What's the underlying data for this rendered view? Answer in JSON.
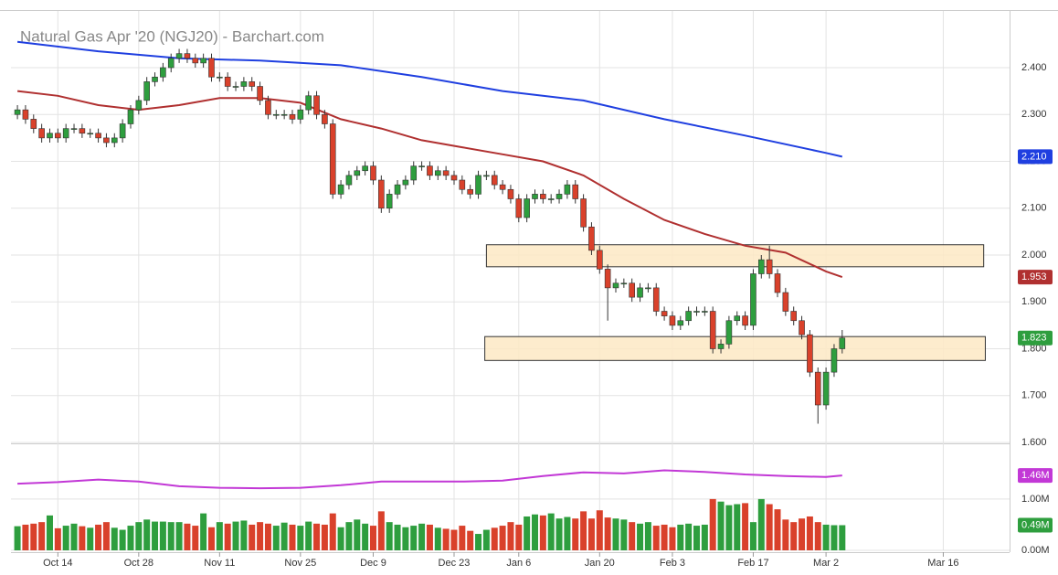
{
  "chart_data": {
    "type": "candlestick",
    "title": "Natural Gas Apr '20 (NGJ20) - Barchart.com",
    "up_color": "#2e9e3e",
    "down_color": "#d9412b",
    "open": [
      2.3,
      2.31,
      2.29,
      2.27,
      2.25,
      2.26,
      2.25,
      2.27,
      2.27,
      2.26,
      2.26,
      2.25,
      2.24,
      2.25,
      2.28,
      2.31,
      2.33,
      2.37,
      2.38,
      2.4,
      2.42,
      2.43,
      2.42,
      2.41,
      2.42,
      2.38,
      2.38,
      2.36,
      2.36,
      2.37,
      2.36,
      2.33,
      2.3,
      2.3,
      2.3,
      2.29,
      2.31,
      2.34,
      2.3,
      2.28,
      2.13,
      2.15,
      2.17,
      2.18,
      2.19,
      2.16,
      2.1,
      2.13,
      2.15,
      2.16,
      2.19,
      2.19,
      2.17,
      2.18,
      2.17,
      2.16,
      2.14,
      2.13,
      2.17,
      2.17,
      2.15,
      2.14,
      2.12,
      2.08,
      2.12,
      2.13,
      2.12,
      2.12,
      2.13,
      2.15,
      2.12,
      2.06,
      2.01,
      1.97,
      1.93,
      1.94,
      1.94,
      1.91,
      1.93,
      1.93,
      1.88,
      1.87,
      1.85,
      1.86,
      1.88,
      1.88,
      1.88,
      1.8,
      1.81,
      1.86,
      1.87,
      1.85,
      1.96,
      1.99,
      1.96,
      1.92,
      1.88,
      1.86,
      1.83,
      1.75,
      1.68,
      1.75,
      1.8
    ],
    "high": [
      2.32,
      2.32,
      2.3,
      2.28,
      2.27,
      2.27,
      2.28,
      2.28,
      2.28,
      2.27,
      2.27,
      2.26,
      2.26,
      2.29,
      2.32,
      2.34,
      2.38,
      2.39,
      2.41,
      2.43,
      2.44,
      2.44,
      2.43,
      2.43,
      2.43,
      2.39,
      2.39,
      2.37,
      2.38,
      2.38,
      2.37,
      2.34,
      2.31,
      2.31,
      2.31,
      2.32,
      2.35,
      2.35,
      2.31,
      2.29,
      2.16,
      2.18,
      2.19,
      2.2,
      2.2,
      2.17,
      2.14,
      2.16,
      2.17,
      2.2,
      2.2,
      2.2,
      2.19,
      2.19,
      2.18,
      2.17,
      2.15,
      2.18,
      2.18,
      2.18,
      2.16,
      2.15,
      2.13,
      2.13,
      2.14,
      2.14,
      2.13,
      2.14,
      2.16,
      2.16,
      2.13,
      2.07,
      2.02,
      1.98,
      1.95,
      1.95,
      1.95,
      1.94,
      1.94,
      1.94,
      1.89,
      1.88,
      1.87,
      1.89,
      1.89,
      1.89,
      1.89,
      1.82,
      1.87,
      1.88,
      1.88,
      1.97,
      2.0,
      2.02,
      1.97,
      1.93,
      1.89,
      1.87,
      1.84,
      1.76,
      1.76,
      1.81,
      1.84
    ],
    "low": [
      2.29,
      2.28,
      2.26,
      2.24,
      2.24,
      2.24,
      2.24,
      2.26,
      2.25,
      2.25,
      2.24,
      2.23,
      2.23,
      2.24,
      2.27,
      2.3,
      2.32,
      2.36,
      2.37,
      2.39,
      2.41,
      2.41,
      2.4,
      2.4,
      2.37,
      2.37,
      2.35,
      2.35,
      2.35,
      2.35,
      2.32,
      2.29,
      2.29,
      2.29,
      2.28,
      2.28,
      2.3,
      2.29,
      2.27,
      2.12,
      2.12,
      2.14,
      2.16,
      2.17,
      2.15,
      2.09,
      2.09,
      2.12,
      2.14,
      2.15,
      2.18,
      2.16,
      2.16,
      2.16,
      2.15,
      2.13,
      2.12,
      2.12,
      2.16,
      2.14,
      2.13,
      2.11,
      2.07,
      2.07,
      2.11,
      2.11,
      2.11,
      2.11,
      2.12,
      2.11,
      2.05,
      2.0,
      1.96,
      1.86,
      1.92,
      1.93,
      1.9,
      1.9,
      1.92,
      1.87,
      1.86,
      1.84,
      1.84,
      1.85,
      1.87,
      1.87,
      1.79,
      1.79,
      1.8,
      1.85,
      1.84,
      1.84,
      1.95,
      1.95,
      1.91,
      1.87,
      1.85,
      1.82,
      1.74,
      1.64,
      1.67,
      1.74,
      1.79
    ],
    "close": [
      2.31,
      2.29,
      2.27,
      2.25,
      2.26,
      2.25,
      2.27,
      2.27,
      2.26,
      2.26,
      2.25,
      2.24,
      2.25,
      2.28,
      2.31,
      2.33,
      2.37,
      2.38,
      2.4,
      2.42,
      2.43,
      2.42,
      2.41,
      2.42,
      2.38,
      2.38,
      2.36,
      2.36,
      2.37,
      2.36,
      2.33,
      2.3,
      2.3,
      2.3,
      2.29,
      2.31,
      2.34,
      2.3,
      2.28,
      2.13,
      2.15,
      2.17,
      2.18,
      2.19,
      2.16,
      2.1,
      2.13,
      2.15,
      2.16,
      2.19,
      2.19,
      2.17,
      2.18,
      2.17,
      2.16,
      2.14,
      2.13,
      2.17,
      2.17,
      2.15,
      2.14,
      2.12,
      2.08,
      2.12,
      2.13,
      2.12,
      2.12,
      2.13,
      2.15,
      2.12,
      2.06,
      2.01,
      1.97,
      1.93,
      1.94,
      1.94,
      1.91,
      1.93,
      1.93,
      1.88,
      1.87,
      1.85,
      1.86,
      1.88,
      1.88,
      1.88,
      1.8,
      1.81,
      1.86,
      1.87,
      1.85,
      1.96,
      1.99,
      1.96,
      1.92,
      1.88,
      1.86,
      1.83,
      1.75,
      1.68,
      1.75,
      1.8,
      1.823
    ],
    "close_label": "1.823",
    "moving_averages": [
      {
        "color": "#1f3fe0",
        "value_label": "2.210",
        "x": [
          0,
          10,
          20,
          30,
          40,
          50,
          60,
          70,
          80,
          90,
          100,
          102
        ],
        "values": [
          2.455,
          2.435,
          2.42,
          2.415,
          2.405,
          2.38,
          2.35,
          2.33,
          2.29,
          2.255,
          2.218,
          2.21
        ]
      },
      {
        "color": "#b03030",
        "value_label": "1.953",
        "x": [
          0,
          5,
          10,
          15,
          20,
          25,
          30,
          35,
          40,
          45,
          50,
          55,
          60,
          65,
          70,
          75,
          80,
          85,
          90,
          95,
          100,
          102
        ],
        "values": [
          2.35,
          2.34,
          2.32,
          2.31,
          2.32,
          2.335,
          2.335,
          2.325,
          2.29,
          2.27,
          2.245,
          2.23,
          2.215,
          2.2,
          2.17,
          2.12,
          2.075,
          2.045,
          2.02,
          2.005,
          1.965,
          1.953
        ]
      }
    ],
    "zones": [
      {
        "x": [
          58,
          119.5
        ],
        "y": [
          1.975,
          2.022
        ]
      },
      {
        "x": [
          57.8,
          119.7
        ],
        "y": [
          1.775,
          1.826
        ]
      }
    ],
    "xlim": [
      -0.8,
      122.7
    ],
    "xticks": [
      {
        "value": 5,
        "label": "Oct 14"
      },
      {
        "value": 15,
        "label": "Oct 28"
      },
      {
        "value": 25,
        "label": "Nov 11"
      },
      {
        "value": 35,
        "label": "Nov 25"
      },
      {
        "value": 44,
        "label": "Dec 9"
      },
      {
        "value": 54,
        "label": "Dec 23"
      },
      {
        "value": 62,
        "label": "Jan 6"
      },
      {
        "value": 72,
        "label": "Jan 20"
      },
      {
        "value": 81,
        "label": "Feb 3"
      },
      {
        "value": 91,
        "label": "Feb 17"
      },
      {
        "value": 100,
        "label": "Mar 2"
      },
      {
        "value": 114.5,
        "label": "Mar 16"
      }
    ],
    "ylim": [
      1.6,
      2.521
    ],
    "yticks": [
      {
        "value": 1.6,
        "label": "1.600"
      },
      {
        "value": 1.7,
        "label": "1.700"
      },
      {
        "value": 1.8,
        "label": "1.800"
      },
      {
        "value": 1.9,
        "label": "1.900"
      },
      {
        "value": 2.0,
        "label": "2.000"
      },
      {
        "value": 2.1,
        "label": "2.100"
      },
      {
        "value": 2.2,
        "label": "2.200"
      },
      {
        "value": 2.3,
        "label": "2.300"
      },
      {
        "value": 2.4,
        "label": "2.400"
      }
    ],
    "grid": true,
    "volume": {
      "values": [
        0.47,
        0.5,
        0.52,
        0.55,
        0.68,
        0.43,
        0.48,
        0.52,
        0.47,
        0.44,
        0.5,
        0.55,
        0.44,
        0.4,
        0.48,
        0.55,
        0.6,
        0.56,
        0.56,
        0.55,
        0.55,
        0.52,
        0.48,
        0.72,
        0.45,
        0.55,
        0.52,
        0.56,
        0.58,
        0.5,
        0.55,
        0.52,
        0.48,
        0.54,
        0.5,
        0.48,
        0.56,
        0.52,
        0.5,
        0.72,
        0.45,
        0.55,
        0.6,
        0.52,
        0.48,
        0.76,
        0.55,
        0.5,
        0.45,
        0.48,
        0.52,
        0.5,
        0.44,
        0.42,
        0.4,
        0.48,
        0.38,
        0.32,
        0.4,
        0.44,
        0.48,
        0.55,
        0.5,
        0.66,
        0.7,
        0.68,
        0.72,
        0.62,
        0.65,
        0.62,
        0.76,
        0.62,
        0.78,
        0.64,
        0.62,
        0.6,
        0.55,
        0.52,
        0.55,
        0.48,
        0.5,
        0.45,
        0.5,
        0.52,
        0.48,
        0.5,
        1.0,
        0.95,
        0.88,
        0.9,
        0.92,
        0.55,
        1.0,
        0.9,
        0.8,
        0.6,
        0.55,
        0.62,
        0.66,
        0.55,
        0.5,
        0.49,
        0.49
      ],
      "value_label": "0.49M",
      "ylim": [
        0,
        2.05
      ],
      "yticks": [
        {
          "value": 0,
          "label": "0.00M"
        },
        {
          "value": 1,
          "label": "1.00M"
        }
      ],
      "ma": {
        "color": "#c238d6",
        "value_label": "1.46M",
        "x": [
          0,
          5,
          10,
          15,
          20,
          25,
          30,
          35,
          40,
          45,
          50,
          55,
          60,
          65,
          70,
          75,
          80,
          85,
          90,
          95,
          100,
          102
        ],
        "values": [
          1.3,
          1.33,
          1.38,
          1.34,
          1.25,
          1.22,
          1.21,
          1.22,
          1.27,
          1.34,
          1.34,
          1.34,
          1.36,
          1.45,
          1.52,
          1.5,
          1.56,
          1.53,
          1.48,
          1.45,
          1.43,
          1.46
        ]
      }
    }
  }
}
